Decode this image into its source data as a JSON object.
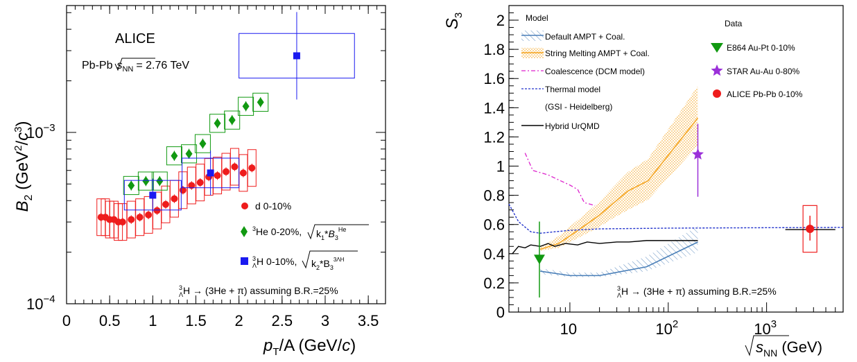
{
  "chart_data": [
    {
      "type": "scatter",
      "ylabel": "B2 (GeV2/c3)",
      "xlabel": "pT/A (GeV/c)",
      "xlim": [
        0,
        3.7
      ],
      "ylim": [
        0.0001,
        0.0055
      ],
      "yscale": "log",
      "x_ticks": [
        "0",
        "0.5",
        "1",
        "1.5",
        "2",
        "2.5",
        "3",
        "3.5"
      ],
      "y_ticks": [
        {
          "base": "10",
          "exp": "−3"
        },
        {
          "base": "10",
          "exp": "−4"
        }
      ],
      "annotations": {
        "experiment": "ALICE",
        "system": "Pb-Pb",
        "sqrt_s": "s",
        "sqrt_s_sub": "NN",
        "energy": "= 2.76 TeV",
        "br_note": "→ (3He + π) assuming B.R.=25%"
      },
      "legend_placement": "lower-right",
      "series": [
        {
          "name": "d 0-10%",
          "color": "#ee1c1c",
          "marker": "circle",
          "x": [
            0.4,
            0.45,
            0.5,
            0.55,
            0.6,
            0.65,
            0.75,
            0.85,
            0.95,
            1.05,
            1.15,
            1.25,
            1.35,
            1.45,
            1.55,
            1.65,
            1.75,
            1.85,
            1.95,
            2.05,
            2.15
          ],
          "y": [
            0.00032,
            0.00032,
            0.00031,
            0.00031,
            0.0003,
            0.0003,
            0.00031,
            0.00032,
            0.00033,
            0.00035,
            0.00038,
            0.00041,
            0.00046,
            0.00049,
            0.00051,
            0.00055,
            0.00056,
            0.00059,
            0.00063,
            0.00058,
            0.00062
          ]
        },
        {
          "name": "3He 0-20%, √(k1*B3He)",
          "legend_text": "He 0-20%,",
          "color": "#119911",
          "marker": "diamond",
          "x": [
            0.75,
            0.92,
            1.08,
            1.25,
            1.42,
            1.58,
            1.75,
            1.92,
            2.08,
            2.25
          ],
          "y": [
            0.00049,
            0.00052,
            0.00052,
            0.00073,
            0.00075,
            0.00086,
            0.00113,
            0.00118,
            0.00142,
            0.0015
          ]
        },
        {
          "name": "ΛH 0-10%, √(k2*B3ΛH)",
          "legend_text": "H 0-10%,",
          "color": "#1a1af0",
          "marker": "square",
          "x": [
            1.0,
            1.67,
            2.67
          ],
          "y": [
            0.00043,
            0.00058,
            0.0028
          ]
        }
      ]
    },
    {
      "type": "line",
      "ylabel": "S3",
      "xlabel": "√sNN (GeV)",
      "xscale": "log",
      "xlim": [
        2.4,
        6000
      ],
      "ylim": [
        0,
        2.1
      ],
      "y_ticks": [
        "0",
        "0.2",
        "0.4",
        "0.6",
        "0.8",
        "1",
        "1.2",
        "1.4",
        "1.6",
        "1.8",
        "2"
      ],
      "x_ticks": [
        {
          "base": "10",
          "exp": ""
        },
        {
          "base": "10",
          "exp": "2"
        },
        {
          "base": "10",
          "exp": "3"
        }
      ],
      "model_header": "Model",
      "data_header": "Data",
      "br_note": "→ (3He + π) assuming B.R.=25%",
      "series": [
        {
          "name": "Default AMPT + Coal.",
          "color": "#4a7fb8",
          "x": [
            5,
            10,
            20,
            60,
            200
          ],
          "y": [
            0.28,
            0.25,
            0.25,
            0.31,
            0.48
          ],
          "band_lo": [
            0.26,
            0.24,
            0.24,
            0.28,
            0.41
          ],
          "band_hi": [
            0.3,
            0.27,
            0.27,
            0.38,
            0.59
          ]
        },
        {
          "name": "String Melting AMPT + Coal.",
          "color": "#f5a623",
          "x": [
            5,
            7.7,
            11.5,
            19.6,
            27,
            39,
            62.4,
            200
          ],
          "y": [
            0.43,
            0.47,
            0.55,
            0.66,
            0.74,
            0.83,
            0.9,
            1.33
          ],
          "band_lo": [
            0.42,
            0.44,
            0.5,
            0.58,
            0.64,
            0.7,
            0.77,
            1.14
          ],
          "band_hi": [
            0.44,
            0.52,
            0.62,
            0.75,
            0.85,
            0.96,
            1.05,
            1.55
          ]
        },
        {
          "name": "Coalescence (DCM model)",
          "color": "#dd22cc",
          "x": [
            3.5,
            4.2,
            6,
            8,
            10,
            12,
            14,
            18
          ],
          "y": [
            1.09,
            0.97,
            0.94,
            0.9,
            0.87,
            0.84,
            0.75,
            0.73
          ]
        },
        {
          "name": "Thermal model",
          "color": "#2233cc",
          "x": [
            2.4,
            3,
            4,
            5,
            7,
            10,
            20,
            100,
            1000,
            6000
          ],
          "y": [
            0.74,
            0.62,
            0.55,
            0.54,
            0.55,
            0.56,
            0.57,
            0.575,
            0.578,
            0.58
          ]
        },
        {
          "name": "(GSI - Heidelberg)"
        },
        {
          "name": "Hybrid UrQMD",
          "color": "#000000",
          "x": [
            2.6,
            3,
            3.5,
            4,
            5,
            6,
            7,
            9,
            12,
            15,
            20,
            30,
            40,
            60,
            80,
            120,
            200
          ],
          "y": [
            0.4,
            0.45,
            0.44,
            0.46,
            0.45,
            0.47,
            0.45,
            0.47,
            0.46,
            0.48,
            0.47,
            0.48,
            0.48,
            0.49,
            0.49,
            0.49,
            0.49
          ]
        }
      ],
      "data_points": [
        {
          "name": "E864 Au-Pt 0-10%",
          "color": "#119911",
          "marker": "triangle-down",
          "x": 4.9,
          "y": 0.36,
          "yerr": [
            0.1,
            0.62
          ]
        },
        {
          "name": "STAR Au-Au 0-80%",
          "color": "#9b30d9",
          "marker": "star",
          "x": 200,
          "y": 1.08,
          "yerr": [
            0.79,
            1.29
          ]
        },
        {
          "name": "ALICE Pb-Pb 0-10%",
          "color": "#ee1c1c",
          "marker": "circle",
          "x": 2760,
          "y": 0.57,
          "yerr": [
            0.49,
            0.66
          ]
        }
      ]
    }
  ]
}
